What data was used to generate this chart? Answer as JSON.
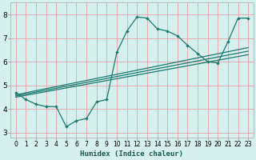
{
  "xlabel": "Humidex (Indice chaleur)",
  "xlim": [
    -0.5,
    23.5
  ],
  "ylim": [
    2.8,
    8.5
  ],
  "xticks": [
    0,
    1,
    2,
    3,
    4,
    5,
    6,
    7,
    8,
    9,
    10,
    11,
    12,
    13,
    14,
    15,
    16,
    17,
    18,
    19,
    20,
    21,
    22,
    23
  ],
  "yticks": [
    3,
    4,
    5,
    6,
    7,
    8
  ],
  "bg_color": "#d6f0ee",
  "grid_color": "#e8a0a8",
  "line_color": "#1a7a6e",
  "line1_x": [
    0,
    1,
    2,
    3,
    4,
    5,
    6,
    7,
    8,
    9,
    10,
    11,
    12,
    13,
    14,
    15,
    16,
    17,
    18,
    19,
    20,
    21,
    22,
    23
  ],
  "line1_y": [
    4.7,
    4.4,
    4.2,
    4.1,
    4.1,
    3.25,
    3.5,
    3.6,
    4.3,
    4.4,
    6.4,
    7.3,
    7.9,
    7.85,
    7.4,
    7.3,
    7.1,
    6.7,
    6.35,
    6.0,
    5.95,
    6.85,
    7.85,
    7.85
  ],
  "line2_x": [
    0,
    23
  ],
  "line2_y": [
    4.6,
    6.6
  ],
  "line3_x": [
    0,
    23
  ],
  "line3_y": [
    4.55,
    6.45
  ],
  "line4_x": [
    0,
    23
  ],
  "line4_y": [
    4.5,
    6.3
  ]
}
